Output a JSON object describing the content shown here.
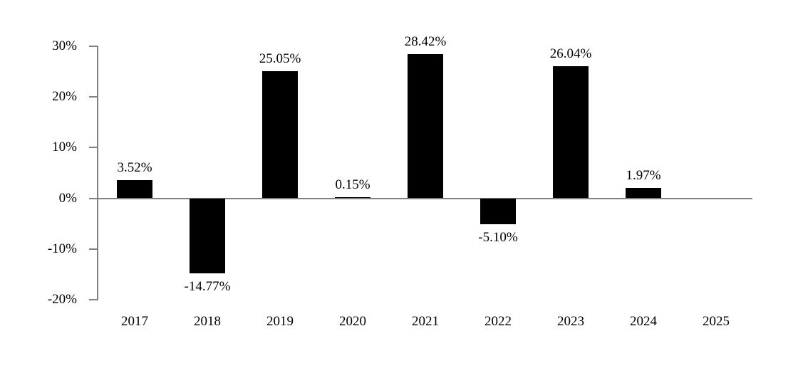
{
  "chart_data": {
    "type": "bar",
    "categories": [
      "2017",
      "2018",
      "2019",
      "2020",
      "2021",
      "2022",
      "2023",
      "2024",
      "2025"
    ],
    "values": [
      3.52,
      -14.77,
      25.05,
      0.15,
      28.42,
      -5.1,
      26.04,
      1.97,
      null
    ],
    "value_labels": [
      "3.52%",
      "-14.77%",
      "25.05%",
      "0.15%",
      "28.42%",
      "-5.10%",
      "26.04%",
      "1.97%",
      ""
    ],
    "title": "",
    "xlabel": "",
    "ylabel": "",
    "ylim": [
      -20,
      30
    ],
    "yticks": [
      30,
      20,
      10,
      0,
      -10,
      -20
    ],
    "ytick_labels": [
      "30%",
      "20%",
      "10%",
      "0%",
      "-10%",
      "-20%"
    ],
    "grid": false,
    "legend": false,
    "bar_color": "#000000",
    "axis_color": "#808080",
    "text_color": "#000000"
  }
}
